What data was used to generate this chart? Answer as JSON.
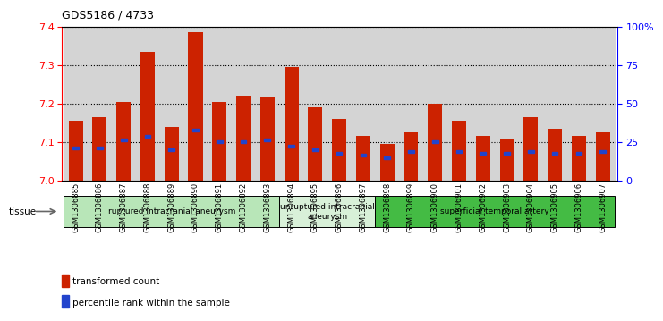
{
  "title": "GDS5186 / 4733",
  "samples": [
    "GSM1306885",
    "GSM1306886",
    "GSM1306887",
    "GSM1306888",
    "GSM1306889",
    "GSM1306890",
    "GSM1306891",
    "GSM1306892",
    "GSM1306893",
    "GSM1306894",
    "GSM1306895",
    "GSM1306896",
    "GSM1306897",
    "GSM1306898",
    "GSM1306899",
    "GSM1306900",
    "GSM1306901",
    "GSM1306902",
    "GSM1306903",
    "GSM1306904",
    "GSM1306905",
    "GSM1306906",
    "GSM1306907"
  ],
  "bar_values": [
    7.155,
    7.165,
    7.205,
    7.335,
    7.14,
    7.385,
    7.205,
    7.22,
    7.215,
    7.295,
    7.19,
    7.16,
    7.115,
    7.095,
    7.125,
    7.2,
    7.155,
    7.115,
    7.11,
    7.165,
    7.135,
    7.115,
    7.125
  ],
  "percentile_values": [
    7.085,
    7.085,
    7.105,
    7.115,
    7.08,
    7.13,
    7.1,
    7.1,
    7.105,
    7.09,
    7.08,
    7.07,
    7.065,
    7.06,
    7.075,
    7.1,
    7.075,
    7.07,
    7.07,
    7.075,
    7.07,
    7.07,
    7.075
  ],
  "groups": [
    {
      "label": "ruptured intracranial aneurysm",
      "start": 0,
      "end": 9,
      "color": "#b8e6b8"
    },
    {
      "label": "unruptured intracranial\naneurysm",
      "start": 9,
      "end": 13,
      "color": "#d8f0d8"
    },
    {
      "label": "superficial temporal artery",
      "start": 13,
      "end": 23,
      "color": "#44bb44"
    }
  ],
  "bar_color": "#cc2200",
  "percentile_color": "#2244cc",
  "ymin": 7.0,
  "ymax": 7.4,
  "yticks": [
    7.0,
    7.1,
    7.2,
    7.3,
    7.4
  ],
  "right_yticks": [
    0,
    25,
    50,
    75,
    100
  ],
  "right_yticklabels": [
    "0",
    "25",
    "50",
    "75",
    "100%"
  ],
  "legend_red_label": "transformed count",
  "legend_blue_label": "percentile rank within the sample",
  "tissue_label": "tissue"
}
